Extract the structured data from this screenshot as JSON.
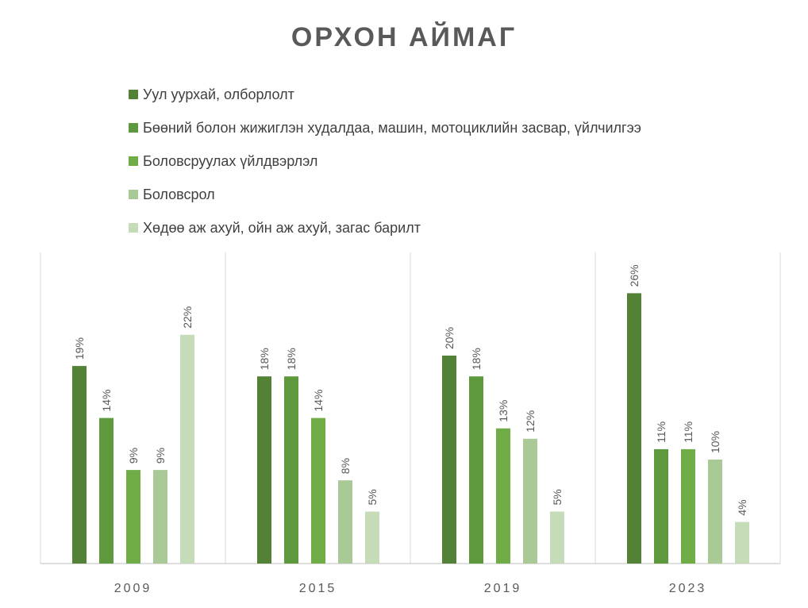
{
  "chart_data": {
    "type": "bar",
    "title": "ОРХОН АЙМАГ",
    "xlabel": "",
    "ylabel": "",
    "ylim": [
      0,
      30
    ],
    "grid": false,
    "legend_position": "top",
    "categories": [
      "2009",
      "2015",
      "2019",
      "2023"
    ],
    "series": [
      {
        "name": "Уул уурхай, олборлолт",
        "color": "#538135",
        "values": [
          19,
          18,
          20,
          26
        ]
      },
      {
        "name": "Бөөний болон жижиглэн худалдаа, машин, мотоциклийн засвар, үйлчилгээ",
        "color": "#5f993d",
        "values": [
          14,
          18,
          18,
          11
        ]
      },
      {
        "name": "Боловсруулах үйлдвэрлэл",
        "color": "#70ad47",
        "values": [
          9,
          14,
          13,
          11
        ]
      },
      {
        "name": "Боловсрол",
        "color": "#a9c996",
        "values": [
          9,
          8,
          12,
          10
        ]
      },
      {
        "name": "Хөдөө аж ахуй, ойн аж ахуй, загас барилт",
        "color": "#c6dcb9",
        "values": [
          22,
          5,
          5,
          4
        ]
      }
    ],
    "value_suffix": "%"
  }
}
